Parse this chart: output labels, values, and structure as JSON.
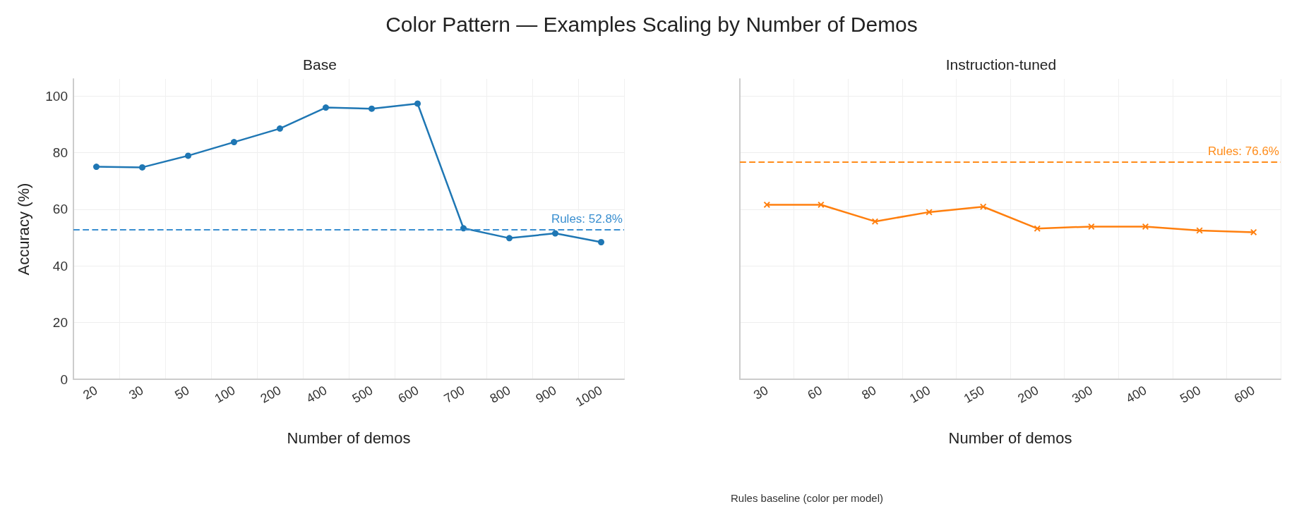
{
  "chart_data": [
    {
      "type": "line",
      "title": "Base",
      "annotations": [
        "Color Pattern — Examples Scaling by Number of Demos"
      ],
      "xlabel": "Number of demos",
      "ylabel": "Accuracy (%)",
      "categories": [
        "20",
        "30",
        "50",
        "100",
        "200",
        "400",
        "500",
        "600",
        "700",
        "800",
        "900",
        "1000"
      ],
      "series": [
        {
          "color": "#1f77b4",
          "values": [
            75.0,
            74.8,
            78.9,
            83.7,
            88.5,
            95.9,
            95.5,
            97.3,
            53.3,
            49.8,
            51.5,
            48.4
          ]
        }
      ],
      "ylim": [
        0,
        106
      ],
      "yticks": [
        0,
        20,
        40,
        60,
        80,
        100
      ],
      "grid": true,
      "marker": "circle",
      "line_style": "solid",
      "ref_lines": [
        {
          "axis": "y",
          "value": 52.8,
          "label": "Rules: 52.8%",
          "color": "#3a8fd0",
          "line_style": "dashed"
        }
      ]
    },
    {
      "type": "line",
      "title": "Instruction-tuned",
      "annotations": [
        "Rules baseline (color per model)"
      ],
      "xlabel": "Number of demos",
      "categories": [
        "30",
        "60",
        "80",
        "100",
        "150",
        "200",
        "300",
        "400",
        "500",
        "600"
      ],
      "series": [
        {
          "color": "#ff7f0e",
          "values": [
            61.6,
            61.6,
            55.7,
            59.0,
            60.9,
            53.2,
            53.9,
            53.9,
            52.5,
            51.9
          ]
        }
      ],
      "ylim": [
        0,
        106
      ],
      "yticks": [
        0,
        20,
        40,
        60,
        80,
        100
      ],
      "grid": true,
      "marker": "cross",
      "line_style": "solid",
      "tick_labels": "x",
      "ref_lines": [
        {
          "axis": "y",
          "value": 76.6,
          "label": "Rules: 76.6%",
          "color": "#ff8c1a",
          "line_style": "dashed"
        }
      ]
    }
  ]
}
